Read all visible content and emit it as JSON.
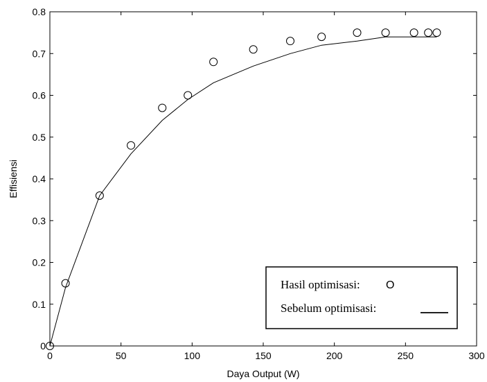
{
  "chart_data": {
    "type": "line",
    "xlabel": "Daya Output (W)",
    "ylabel": "Effisiensi",
    "xlim": [
      0,
      300
    ],
    "ylim": [
      0,
      0.8
    ],
    "x_ticks": [
      0,
      50,
      100,
      150,
      200,
      250,
      300
    ],
    "y_ticks": [
      0,
      0.1,
      0.2,
      0.3,
      0.4,
      0.5,
      0.6,
      0.7,
      0.8
    ],
    "x_tick_labels": [
      "0",
      "50",
      "100",
      "150",
      "200",
      "250",
      "300"
    ],
    "y_tick_labels": [
      "0",
      "0.1",
      "0.2",
      "0.3",
      "0.4",
      "0.5",
      "0.6",
      "0.7",
      "0.8"
    ],
    "grid": false,
    "legend_position": "bottom-right",
    "series": [
      {
        "name": "Hasil optimisasi:",
        "legend_marker": "O",
        "style": "markers",
        "color": "#000000",
        "x": [
          0,
          11,
          35,
          57,
          79,
          97,
          115,
          143,
          169,
          191,
          216,
          236,
          256,
          266,
          272
        ],
        "y": [
          0,
          0.15,
          0.36,
          0.48,
          0.57,
          0.6,
          0.68,
          0.71,
          0.73,
          0.74,
          0.75,
          0.75,
          0.75,
          0.75,
          0.75
        ]
      },
      {
        "name": "Sebelum optimisasi:",
        "style": "line",
        "color": "#000000",
        "x": [
          0,
          11,
          35,
          57,
          79,
          97,
          115,
          143,
          169,
          191,
          216,
          236,
          256,
          266,
          272
        ],
        "y": [
          0,
          0.14,
          0.36,
          0.46,
          0.54,
          0.59,
          0.63,
          0.67,
          0.7,
          0.72,
          0.73,
          0.74,
          0.74,
          0.74,
          0.74
        ]
      }
    ]
  }
}
